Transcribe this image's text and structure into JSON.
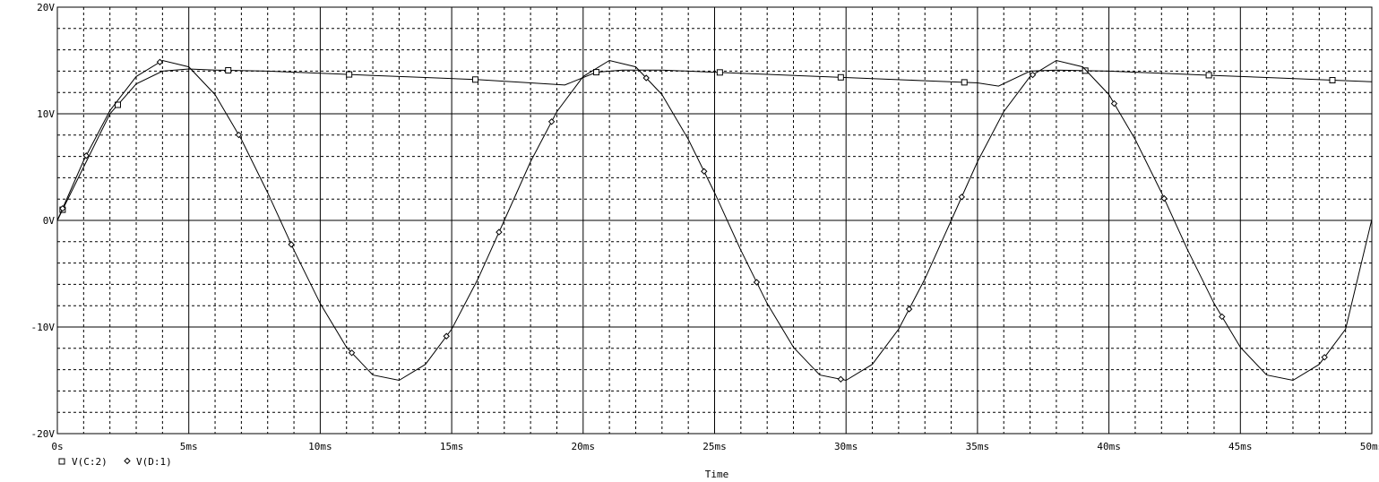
{
  "chart_data": {
    "type": "line",
    "xlabel": "Time",
    "ylabel": "",
    "xlim": [
      0,
      50
    ],
    "ylim": [
      -20,
      20
    ],
    "x_ticks": [
      0,
      5,
      10,
      15,
      20,
      25,
      30,
      35,
      40,
      45,
      50
    ],
    "x_tick_labels": [
      "0s",
      "5ms",
      "10ms",
      "15ms",
      "20ms",
      "25ms",
      "30ms",
      "35ms",
      "40ms",
      "45ms",
      "50ms"
    ],
    "y_ticks": [
      20,
      10,
      0,
      -10,
      -20
    ],
    "y_tick_labels": [
      "20V",
      "10V",
      "0V",
      "-10V",
      "-20V"
    ],
    "grid": true,
    "legend_position": "bottom-left",
    "series": [
      {
        "name": "V(C:2)",
        "marker": "square",
        "x": [
          0,
          1,
          2,
          3,
          4,
          5,
          6,
          8,
          10,
          12,
          14,
          16,
          18,
          19.3,
          20.5,
          21.5,
          23,
          25,
          27,
          29,
          31,
          33,
          35,
          35.8,
          37,
          38,
          40,
          42,
          44,
          46,
          48,
          50
        ],
        "y": [
          0,
          5,
          10,
          12.8,
          14,
          14.2,
          14.1,
          14,
          13.8,
          13.6,
          13.4,
          13.2,
          12.9,
          12.7,
          13.9,
          14.1,
          14.1,
          13.9,
          13.7,
          13.5,
          13.3,
          13.1,
          12.9,
          12.6,
          14,
          14.1,
          14,
          13.8,
          13.6,
          13.4,
          13.2,
          13
        ],
        "marker_x": [
          0.2,
          2.3,
          6.5,
          11.1,
          15.9,
          20.5,
          25.2,
          29.8,
          34.5,
          39.1,
          43.8,
          48.5
        ]
      },
      {
        "name": "V(D:1)",
        "marker": "diamond",
        "x": [
          0,
          1,
          2,
          3,
          4,
          5,
          6,
          7,
          8,
          9,
          10,
          11,
          12,
          13,
          14,
          15,
          16,
          17,
          18,
          19,
          20,
          21,
          22,
          23,
          24,
          25,
          26,
          27,
          28,
          29,
          30,
          31,
          32,
          33,
          34,
          35,
          36,
          37,
          38,
          39,
          40,
          41,
          42,
          43,
          44,
          45,
          46,
          47,
          48,
          49,
          50
        ],
        "y": [
          0,
          5.6,
          10.3,
          13.5,
          15,
          14.4,
          11.8,
          7.6,
          2.6,
          -2.8,
          -7.8,
          -11.9,
          -14.5,
          -15,
          -13.5,
          -10.2,
          -5.5,
          0,
          5.5,
          10.2,
          13.5,
          15,
          14.4,
          11.8,
          7.6,
          2.6,
          -2.8,
          -7.8,
          -11.9,
          -14.5,
          -15,
          -13.5,
          -10.2,
          -5.5,
          0,
          5.5,
          10.2,
          13.5,
          15,
          14.4,
          11.8,
          7.6,
          2.6,
          -2.8,
          -7.8,
          -11.9,
          -14.5,
          -15,
          -13.5,
          -10.2,
          0.1
        ],
        "marker_x": [
          0.2,
          1.1,
          3.9,
          6.9,
          8.9,
          11.2,
          14.8,
          16.8,
          18.8,
          22.4,
          24.6,
          26.6,
          29.8,
          32.4,
          34.4,
          37.1,
          40.2,
          42.1,
          44.3,
          48.2
        ]
      }
    ]
  }
}
